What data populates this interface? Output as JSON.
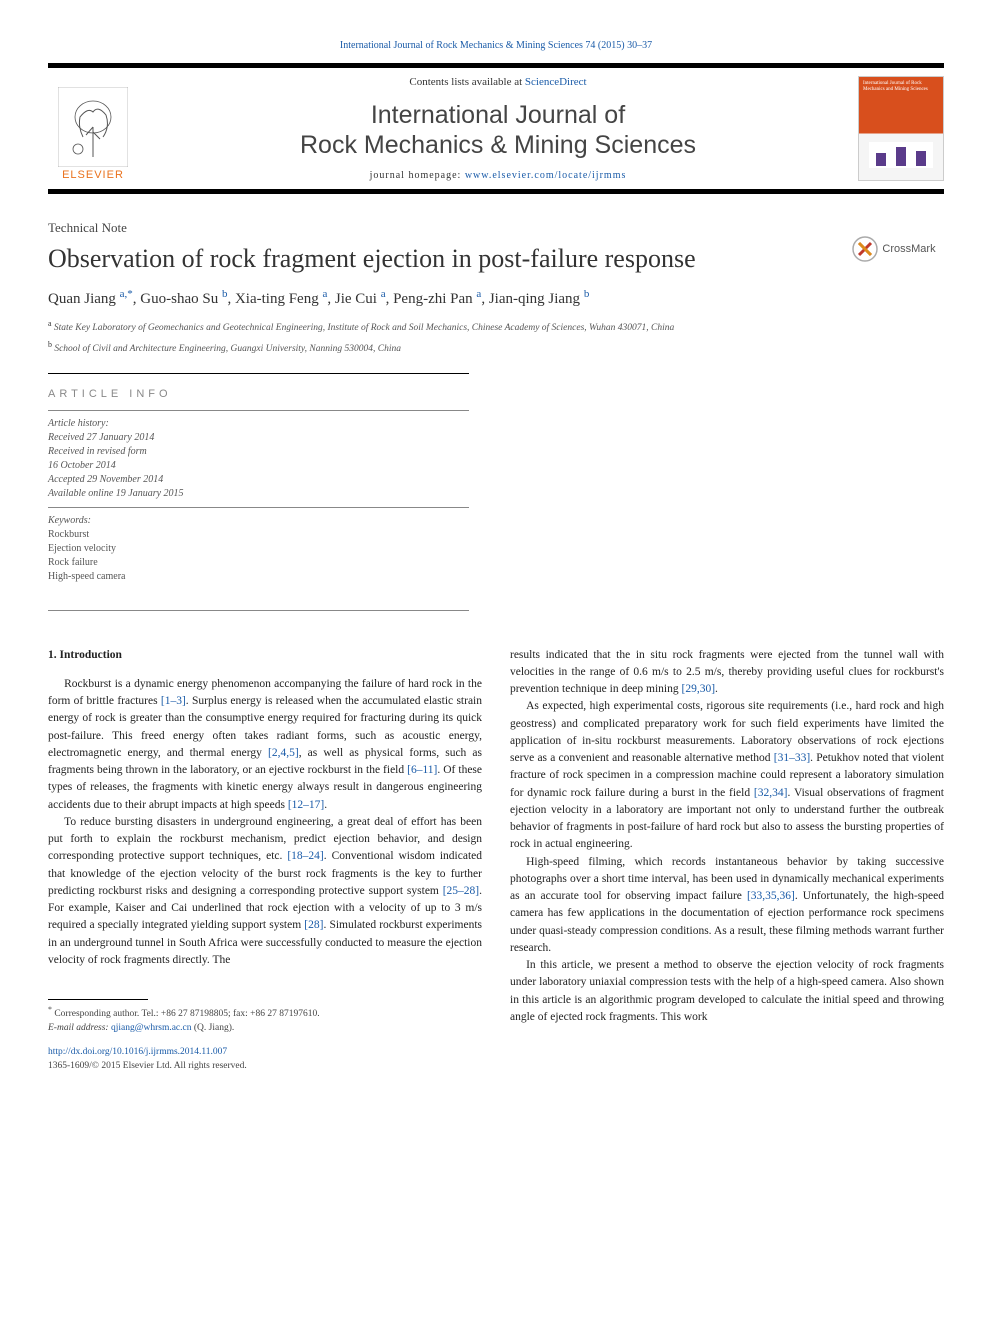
{
  "header": {
    "citation_link": "International Journal of Rock Mechanics & Mining Sciences 74 (2015) 30–37",
    "contents_prefix": "Contents lists available at ",
    "contents_link": "ScienceDirect",
    "journal_line1": "International Journal of",
    "journal_line2": "Rock Mechanics & Mining Sciences",
    "homepage_prefix": "journal homepage: ",
    "homepage_link": "www.elsevier.com/locate/ijrmms",
    "elsevier_label": "ELSEVIER",
    "cover_text": "International Journal of Rock Mechanics and Mining Sciences"
  },
  "article": {
    "type_label": "Technical Note",
    "title": "Observation of rock fragment ejection in post-failure response",
    "crossmark_label": "CrossMark",
    "authors_html": "Quan Jiang <sup>a,*</sup>, Guo-shao Su <sup>b</sup>, Xia-ting Feng <sup>a</sup>, Jie Cui <sup>a</sup>, Peng-zhi Pan <sup>a</sup>, Jian-qing Jiang <sup>b</sup>",
    "affiliations": [
      {
        "label": "a",
        "text": "State Key Laboratory of Geomechanics and Geotechnical Engineering, Institute of Rock and Soil Mechanics, Chinese Academy of Sciences, Wuhan 430071, China"
      },
      {
        "label": "b",
        "text": "School of Civil and Architecture Engineering, Guangxi University, Nanning 530004, China"
      }
    ]
  },
  "info": {
    "section_head": "article info",
    "history_head": "Article history:",
    "received": "Received 27 January 2014",
    "revised": "Received in revised form\n16 October 2014",
    "accepted": "Accepted 29 November 2014",
    "online": "Available online 19 January 2015",
    "keywords_head": "Keywords:",
    "keywords": [
      "Rockburst",
      "Ejection velocity",
      "Rock failure",
      "High-speed camera"
    ]
  },
  "body": {
    "section_head": "1.  Introduction",
    "left": [
      "Rockburst is a dynamic energy phenomenon accompanying the failure of hard rock in the form of brittle fractures <span class=\"ref\">[1–3]</span>. Surplus energy is released when the accumulated elastic strain energy of rock is greater than the consumptive energy required for fracturing during its quick post-failure. This freed energy often takes radiant forms, such as acoustic energy, electromagnetic energy, and thermal energy <span class=\"ref\">[2,4,5]</span>, as well as physical forms, such as fragments being thrown in the laboratory, or an ejective rockburst in the field <span class=\"ref\">[6–11]</span>. Of these types of releases, the fragments with kinetic energy always result in dangerous engineering accidents due to their abrupt impacts at high speeds <span class=\"ref\">[12–17]</span>.",
      "To reduce bursting disasters in underground engineering, a great deal of effort has been put forth to explain the rockburst mechanism, predict ejection behavior, and design corresponding protective support techniques, etc. <span class=\"ref\">[18–24]</span>. Conventional wisdom indicated that knowledge of the ejection velocity of the burst rock fragments is the key to further predicting rockburst risks and designing a corresponding protective support system <span class=\"ref\">[25–28]</span>. For example, Kaiser and Cai underlined that rock ejection with a velocity of up to 3 m/s required a specially integrated yielding support system <span class=\"ref\">[28]</span>. Simulated rockburst experiments in an underground tunnel in South Africa were successfully conducted to measure the ejection velocity of rock fragments directly. The"
    ],
    "right": [
      "results indicated that the in situ rock fragments were ejected from the tunnel wall with velocities in the range of 0.6 m/s to 2.5 m/s, thereby providing useful clues for rockburst's prevention technique in deep mining <span class=\"ref\">[29,30]</span>.",
      "As expected, high experimental costs, rigorous site requirements (i.e., hard rock and high geostress) and complicated preparatory work for such field experiments have limited the application of in-situ rockburst measurements. Laboratory observations of rock ejections serve as a convenient and reasonable alternative method <span class=\"ref\">[31–33]</span>. Petukhov noted that violent fracture of rock specimen in a compression machine could represent a laboratory simulation for dynamic rock failure during a burst in the field <span class=\"ref\">[32,34]</span>. Visual observations of fragment ejection velocity in a laboratory are important not only to understand further the outbreak behavior of fragments in post-failure of hard rock but also to assess the bursting properties of rock in actual engineering.",
      "High-speed filming, which records instantaneous behavior by taking successive photographs over a short time interval, has been used in dynamically mechanical experiments as an accurate tool for observing impact failure <span class=\"ref\">[33,35,36]</span>. Unfortunately, the high-speed camera has few applications in the documentation of ejection performance rock specimens under quasi-steady compression conditions. As a result, these filming methods warrant further research.",
      "In this article, we present a method to observe the ejection velocity of rock fragments under laboratory uniaxial compression tests with the help of a high-speed camera. Also shown in this article is an algorithmic program developed to calculate the initial speed and throwing angle of ejected rock fragments. This work"
    ]
  },
  "footer": {
    "corresponding": "Corresponding author. Tel.: +86 27 87198805; fax: +86 27 87197610.",
    "email_label": "E-mail address:",
    "email": "qjiang@whrsm.ac.cn",
    "email_author": "(Q. Jiang).",
    "doi_link": "http://dx.doi.org/10.1016/j.ijrmms.2014.11.007",
    "copyright": "1365-1609/© 2015 Elsevier Ltd. All rights reserved."
  },
  "colors": {
    "link": "#1a5ba8",
    "brand": "#e9711c",
    "text": "#222222",
    "muted": "#555555"
  }
}
